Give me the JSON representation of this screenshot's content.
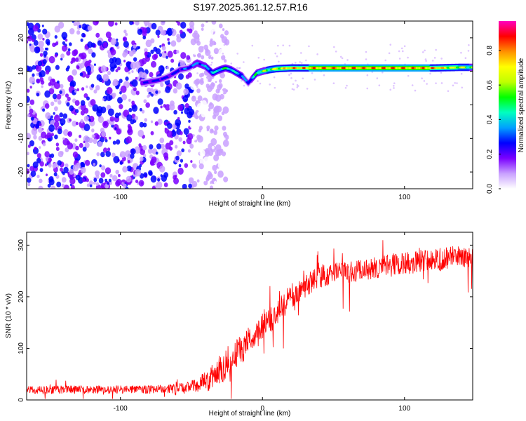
{
  "figure_title": "S197.2025.361.12.57.R16",
  "chart_data": [
    {
      "type": "heatmap",
      "panel": "top",
      "xlabel": "Height of straight line (km)",
      "ylabel": "Frequency (Hz)",
      "xlim": [
        -166,
        148
      ],
      "ylim": [
        -25,
        25
      ],
      "xticks": [
        -100,
        0,
        100
      ],
      "yticks": [
        -20,
        -10,
        0,
        10,
        20
      ],
      "colorbar": {
        "label": "Normalized spectral amplitude",
        "ticks": [
          0.0,
          0.2,
          0.4,
          0.6,
          0.8
        ],
        "range": [
          0.0,
          0.97
        ],
        "stops": [
          "#ffffff",
          "#c9a0ff",
          "#7a00ff",
          "#0000ff",
          "#00a0ff",
          "#00ffc0",
          "#00ff00",
          "#c0ff00",
          "#ffff00",
          "#ff9000",
          "#ff0000",
          "#ff00c0"
        ]
      },
      "ridge": {
        "description": "dominant frequency track",
        "x": [
          -85,
          -78,
          -72,
          -66,
          -58,
          -52,
          -46,
          -40,
          -35,
          -30,
          -26,
          -22,
          -18,
          -14,
          -12,
          -10,
          -7,
          -4,
          0,
          5,
          10,
          20,
          40,
          60,
          80,
          100,
          120,
          140,
          148
        ],
        "freq": [
          6.5,
          7,
          7.5,
          8.5,
          10.5,
          11,
          12.5,
          11.5,
          9.5,
          10.5,
          11,
          10.5,
          9.5,
          8.5,
          7.5,
          6.5,
          8,
          9.5,
          10,
          10.5,
          10.8,
          11,
          11,
          11,
          11,
          11,
          11,
          11.2,
          11.2
        ],
        "amplitude": [
          0.25,
          0.3,
          0.3,
          0.28,
          0.3,
          0.35,
          0.4,
          0.4,
          0.45,
          0.5,
          0.55,
          0.5,
          0.45,
          0.4,
          0.35,
          0.3,
          0.4,
          0.55,
          0.6,
          0.65,
          0.75,
          0.85,
          0.9,
          0.9,
          0.9,
          0.9,
          0.88,
          0.7,
          0.6
        ]
      },
      "noise": {
        "x_range": [
          -166,
          -50
        ],
        "amplitude_range": [
          0.05,
          0.3
        ]
      }
    },
    {
      "type": "line",
      "panel": "bottom",
      "xlabel": "Height of straight line (km)",
      "ylabel": "SNR (10 * v/v)",
      "xlim": [
        -166,
        148
      ],
      "ylim": [
        0,
        325
      ],
      "xticks": [
        -100,
        0,
        100
      ],
      "yticks": [
        0,
        100,
        200,
        300
      ],
      "series": [
        {
          "name": "SNR",
          "color": "#ff0000",
          "x": [
            -166,
            -140,
            -120,
            -100,
            -80,
            -60,
            -50,
            -45,
            -40,
            -35,
            -30,
            -25,
            -20,
            -15,
            -10,
            -5,
            0,
            5,
            10,
            15,
            20,
            30,
            40,
            50,
            60,
            70,
            80,
            90,
            100,
            110,
            120,
            130,
            140,
            148
          ],
          "mean": [
            20,
            20,
            20,
            20,
            20,
            22,
            27,
            30,
            36,
            45,
            58,
            72,
            88,
            100,
            112,
            125,
            140,
            155,
            170,
            185,
            200,
            220,
            238,
            245,
            248,
            252,
            256,
            262,
            265,
            268,
            270,
            275,
            278,
            276
          ],
          "spread": [
            16,
            16,
            16,
            16,
            16,
            18,
            22,
            28,
            40,
            55,
            60,
            60,
            60,
            60,
            58,
            58,
            55,
            55,
            50,
            50,
            50,
            45,
            42,
            42,
            42,
            42,
            42,
            42,
            45,
            45,
            45,
            45,
            45,
            45
          ]
        }
      ]
    }
  ]
}
